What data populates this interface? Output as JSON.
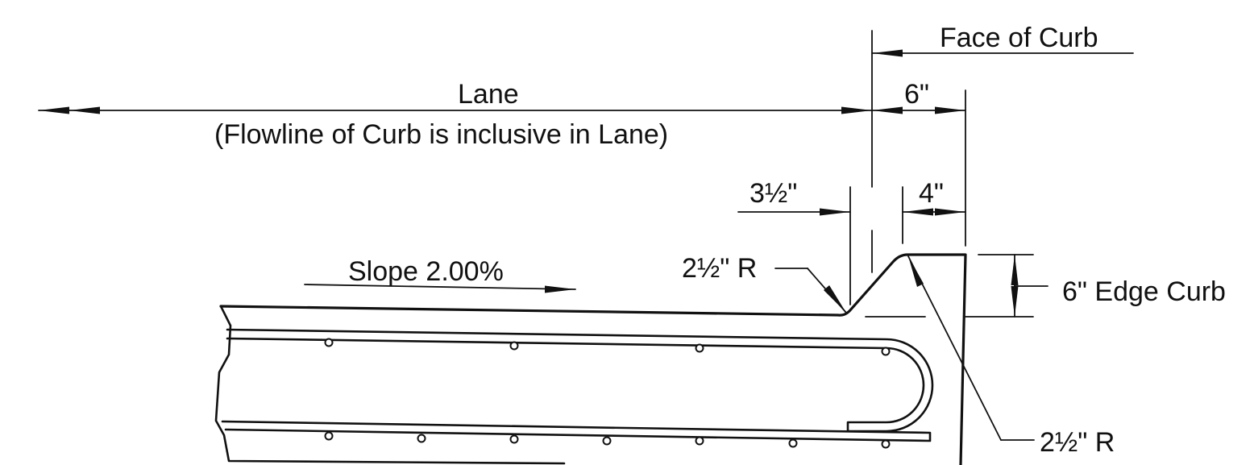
{
  "labels": {
    "face_of_curb": "Face of Curb",
    "lane": "Lane",
    "lane_note": "(Flowline of Curb is inclusive in Lane)",
    "dim_6in": "6\"",
    "dim_3_5in": "3½\"",
    "dim_4in": "4\"",
    "radius_top": "2½\" R",
    "radius_bottom": "2½\" R",
    "slope": "Slope 2.00%",
    "edge_curb": "6\" Edge Curb"
  },
  "colors": {
    "line": "#111111",
    "background": "#ffffff"
  }
}
